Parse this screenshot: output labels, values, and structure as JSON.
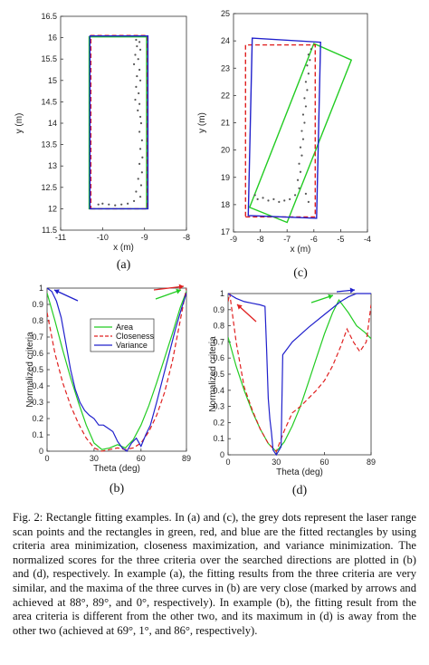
{
  "figure": {
    "caption": "Fig. 2: Rectangle fitting examples. In (a) and (c), the grey dots represent the laser range scan points and the rectangles in green, red, and blue are the fitted rectangles by using criteria area minimization, closeness maximization, and variance minimization. The normalized scores for the three criteria over the searched directions are plotted in (b) and (d), respectively. In example (a), the fitting results from the three criteria are very similar, and the maxima of the three curves in (b) are very close (marked by arrows and achieved at 88°, 89°, and 0°, respectively). In example (b), the fitting result from the area criteria is different from the other two, and its maximum in (d) is away from the other two (achieved at 69°, 1°, and 86°, respectively)."
  },
  "colors": {
    "area": "#22cc22",
    "closeness": "#e02020",
    "variance": "#2020cc",
    "points": "#555555"
  },
  "chart_data": [
    {
      "id": "a",
      "type": "scatter",
      "panel_label": "(a)",
      "xlabel": "x (m)",
      "ylabel": "y (m)",
      "xlim": [
        -11,
        -8
      ],
      "ylim": [
        11.5,
        16.5
      ],
      "xticks": [
        -11,
        -10,
        -9,
        -8
      ],
      "xtick_labels": [
        "-11",
        "-10",
        "-9",
        "-8"
      ],
      "yticks": [
        11.5,
        12,
        12.5,
        13,
        13.5,
        14,
        14.5,
        15,
        15.5,
        16,
        16.5
      ],
      "ytick_labels": [
        "11.5",
        "12",
        "12.5",
        "13",
        "13.5",
        "14",
        "14.5",
        "15",
        "15.5",
        "16",
        "16.5"
      ],
      "rectangles": [
        {
          "criterion": "Area",
          "color": "#22cc22",
          "style": "solid",
          "corners": [
            [
              -10.32,
              12.0
            ],
            [
              -8.95,
              12.0
            ],
            [
              -8.95,
              16.02
            ],
            [
              -10.32,
              16.02
            ]
          ]
        },
        {
          "criterion": "Closeness",
          "color": "#e02020",
          "style": "dashed",
          "corners": [
            [
              -10.28,
              12.0
            ],
            [
              -8.93,
              12.0
            ],
            [
              -8.93,
              16.05
            ],
            [
              -10.28,
              16.05
            ]
          ]
        },
        {
          "criterion": "Variance",
          "color": "#2020cc",
          "style": "solid",
          "corners": [
            [
              -10.3,
              12.0
            ],
            [
              -8.92,
              12.0
            ],
            [
              -8.92,
              16.04
            ],
            [
              -10.3,
              16.04
            ]
          ]
        }
      ],
      "points": [
        [
          -9.2,
          15.95
        ],
        [
          -9.12,
          15.9
        ],
        [
          -9.18,
          15.8
        ],
        [
          -9.1,
          15.72
        ],
        [
          -9.22,
          15.6
        ],
        [
          -9.15,
          15.5
        ],
        [
          -9.25,
          15.38
        ],
        [
          -9.12,
          15.25
        ],
        [
          -9.18,
          15.1
        ],
        [
          -9.1,
          15.0
        ],
        [
          -9.2,
          14.85
        ],
        [
          -9.14,
          14.7
        ],
        [
          -9.22,
          14.55
        ],
        [
          -9.12,
          14.45
        ],
        [
          -9.16,
          14.3
        ],
        [
          -9.1,
          14.15
        ],
        [
          -9.08,
          14.0
        ],
        [
          -9.12,
          13.8
        ],
        [
          -9.06,
          13.6
        ],
        [
          -9.1,
          13.4
        ],
        [
          -9.05,
          13.2
        ],
        [
          -9.12,
          13.05
        ],
        [
          -9.06,
          12.85
        ],
        [
          -9.15,
          12.7
        ],
        [
          -9.08,
          12.55
        ],
        [
          -9.2,
          12.4
        ],
        [
          -9.1,
          12.28
        ],
        [
          -9.25,
          12.18
        ],
        [
          -9.4,
          12.12
        ],
        [
          -9.55,
          12.1
        ],
        [
          -9.7,
          12.08
        ],
        [
          -9.85,
          12.1
        ],
        [
          -10.0,
          12.12
        ],
        [
          -10.1,
          12.1
        ]
      ]
    },
    {
      "id": "c",
      "type": "scatter",
      "panel_label": "(c)",
      "xlabel": "x (m)",
      "ylabel": "y (m)",
      "xlim": [
        -9,
        -4
      ],
      "ylim": [
        17,
        25
      ],
      "xticks": [
        -9,
        -8,
        -7,
        -6,
        -5,
        -4
      ],
      "xtick_labels": [
        "-9",
        "-8",
        "-7",
        "-6",
        "-5",
        "-4"
      ],
      "yticks": [
        17,
        18,
        19,
        20,
        21,
        22,
        23,
        24,
        25
      ],
      "ytick_labels": [
        "17",
        "18",
        "19",
        "20",
        "21",
        "22",
        "23",
        "24",
        "25"
      ],
      "rectangles": [
        {
          "criterion": "Area",
          "color": "#22cc22",
          "style": "solid",
          "corners": [
            [
              -8.4,
              17.9
            ],
            [
              -7.0,
              17.35
            ],
            [
              -4.6,
              23.3
            ],
            [
              -6.0,
              23.9
            ]
          ]
        },
        {
          "criterion": "Closeness",
          "color": "#e02020",
          "style": "dashed",
          "corners": [
            [
              -8.55,
              17.55
            ],
            [
              -5.95,
              17.55
            ],
            [
              -5.95,
              23.85
            ],
            [
              -8.55,
              23.85
            ]
          ]
        },
        {
          "criterion": "Variance",
          "color": "#2020cc",
          "style": "solid",
          "corners": [
            [
              -8.45,
              17.6
            ],
            [
              -5.9,
              17.5
            ],
            [
              -5.75,
              23.95
            ],
            [
              -8.3,
              24.1
            ]
          ]
        }
      ],
      "points": [
        [
          -6.1,
          23.7
        ],
        [
          -6.2,
          23.5
        ],
        [
          -6.15,
          23.3
        ],
        [
          -6.25,
          23.1
        ],
        [
          -6.2,
          22.8
        ],
        [
          -6.3,
          22.5
        ],
        [
          -6.25,
          22.2
        ],
        [
          -6.35,
          21.9
        ],
        [
          -6.3,
          21.6
        ],
        [
          -6.4,
          21.3
        ],
        [
          -6.35,
          21.0
        ],
        [
          -6.45,
          20.7
        ],
        [
          -6.4,
          20.4
        ],
        [
          -6.5,
          20.1
        ],
        [
          -6.45,
          19.8
        ],
        [
          -6.55,
          19.5
        ],
        [
          -6.5,
          19.2
        ],
        [
          -6.6,
          18.9
        ],
        [
          -6.55,
          18.6
        ],
        [
          -6.7,
          18.35
        ],
        [
          -6.9,
          18.2
        ],
        [
          -7.1,
          18.15
        ],
        [
          -7.3,
          18.1
        ],
        [
          -7.5,
          18.2
        ],
        [
          -7.7,
          18.15
        ],
        [
          -7.9,
          18.25
        ],
        [
          -8.1,
          18.2
        ],
        [
          -8.2,
          18.35
        ],
        [
          -6.3,
          18.4
        ],
        [
          -6.2,
          18.1
        ]
      ]
    },
    {
      "id": "b",
      "type": "line",
      "panel_label": "(b)",
      "xlabel": "Theta (deg)",
      "ylabel": "Normalized criteria",
      "xlim": [
        0,
        89
      ],
      "ylim": [
        0,
        1
      ],
      "xticks": [
        0,
        30,
        60,
        89
      ],
      "xtick_labels": [
        "0",
        "30",
        "60",
        "89"
      ],
      "yticks": [
        0,
        0.1,
        0.2,
        0.3,
        0.4,
        0.5,
        0.6,
        0.7,
        0.8,
        0.9,
        1
      ],
      "ytick_labels": [
        "0",
        "0.1",
        "0.2",
        "0.3",
        "0.4",
        "0.5",
        "0.6",
        "0.7",
        "0.8",
        "0.9",
        "1"
      ],
      "legend": {
        "position": "upper-middle",
        "entries": [
          "Area",
          "Closeness",
          "Variance"
        ]
      },
      "series": [
        {
          "name": "Area",
          "color": "#22cc22",
          "style": "solid",
          "x": [
            0,
            5,
            10,
            15,
            20,
            25,
            30,
            35,
            40,
            45,
            50,
            55,
            60,
            65,
            70,
            75,
            80,
            85,
            89
          ],
          "y": [
            0.97,
            0.8,
            0.62,
            0.45,
            0.3,
            0.16,
            0.05,
            0.01,
            0.02,
            0.04,
            0.02,
            0.07,
            0.16,
            0.28,
            0.42,
            0.57,
            0.72,
            0.88,
            0.98
          ]
        },
        {
          "name": "Closeness",
          "color": "#e02020",
          "style": "dashed",
          "x": [
            0,
            5,
            10,
            15,
            20,
            25,
            30,
            35,
            40,
            45,
            50,
            55,
            60,
            65,
            70,
            75,
            80,
            85,
            89
          ],
          "y": [
            0.85,
            0.6,
            0.42,
            0.28,
            0.17,
            0.08,
            0.02,
            0.0,
            0.01,
            0.02,
            0.01,
            0.02,
            0.05,
            0.12,
            0.22,
            0.36,
            0.55,
            0.8,
            1.0
          ]
        },
        {
          "name": "Variance",
          "color": "#2020cc",
          "style": "solid",
          "x": [
            0,
            3,
            6,
            9,
            12,
            15,
            18,
            21,
            24,
            27,
            30,
            33,
            36,
            39,
            42,
            45,
            48,
            51,
            54,
            57,
            60,
            63,
            66,
            70,
            74,
            78,
            82,
            86,
            89
          ],
          "y": [
            1.0,
            0.98,
            0.92,
            0.82,
            0.66,
            0.5,
            0.38,
            0.3,
            0.25,
            0.22,
            0.2,
            0.16,
            0.16,
            0.14,
            0.12,
            0.06,
            0.02,
            0.0,
            0.05,
            0.08,
            0.03,
            0.1,
            0.16,
            0.3,
            0.45,
            0.6,
            0.75,
            0.88,
            0.97
          ]
        }
      ],
      "annotations": [
        "arrows mark maxima at 88°, 89°, 0°"
      ]
    },
    {
      "id": "d",
      "type": "line",
      "panel_label": "(d)",
      "xlabel": "Theta (deg)",
      "ylabel": "Normalized criteria",
      "xlim": [
        0,
        89
      ],
      "ylim": [
        0,
        1
      ],
      "xticks": [
        0,
        30,
        60,
        89
      ],
      "xtick_labels": [
        "0",
        "30",
        "60",
        "89"
      ],
      "yticks": [
        0,
        0.1,
        0.2,
        0.3,
        0.4,
        0.5,
        0.6,
        0.7,
        0.8,
        0.9,
        1
      ],
      "ytick_labels": [
        "0",
        "0.1",
        "0.2",
        "0.3",
        "0.4",
        "0.5",
        "0.6",
        "0.7",
        "0.8",
        "0.9",
        "1"
      ],
      "series": [
        {
          "name": "Area",
          "color": "#22cc22",
          "style": "solid",
          "x": [
            0,
            5,
            10,
            15,
            20,
            25,
            30,
            35,
            40,
            45,
            50,
            55,
            60,
            65,
            69,
            75,
            80,
            85,
            89
          ],
          "y": [
            0.73,
            0.55,
            0.4,
            0.27,
            0.16,
            0.07,
            0.02,
            0.08,
            0.18,
            0.3,
            0.45,
            0.6,
            0.75,
            0.88,
            0.96,
            0.88,
            0.8,
            0.76,
            0.72
          ]
        },
        {
          "name": "Closeness",
          "color": "#e02020",
          "style": "dashed",
          "x": [
            0,
            1,
            5,
            10,
            15,
            20,
            25,
            30,
            35,
            40,
            45,
            50,
            55,
            60,
            65,
            70,
            74,
            78,
            82,
            86,
            89
          ],
          "y": [
            0.95,
            1.0,
            0.7,
            0.42,
            0.28,
            0.16,
            0.07,
            0.02,
            0.15,
            0.26,
            0.3,
            0.35,
            0.4,
            0.46,
            0.55,
            0.67,
            0.78,
            0.7,
            0.64,
            0.7,
            0.93
          ]
        },
        {
          "name": "Variance",
          "color": "#2020cc",
          "style": "solid",
          "x": [
            0,
            5,
            10,
            15,
            20,
            23,
            24,
            25,
            26,
            27,
            28,
            30,
            33,
            34,
            40,
            50,
            60,
            70,
            75,
            80,
            86,
            89
          ],
          "y": [
            1.0,
            0.97,
            0.95,
            0.94,
            0.93,
            0.92,
            0.65,
            0.35,
            0.22,
            0.14,
            0.03,
            0.0,
            0.05,
            0.62,
            0.7,
            0.79,
            0.87,
            0.95,
            0.98,
            1.0,
            1.0,
            1.0
          ]
        }
      ],
      "annotations": [
        "arrows mark maxima at 69°, 1°, 86°"
      ]
    }
  ]
}
